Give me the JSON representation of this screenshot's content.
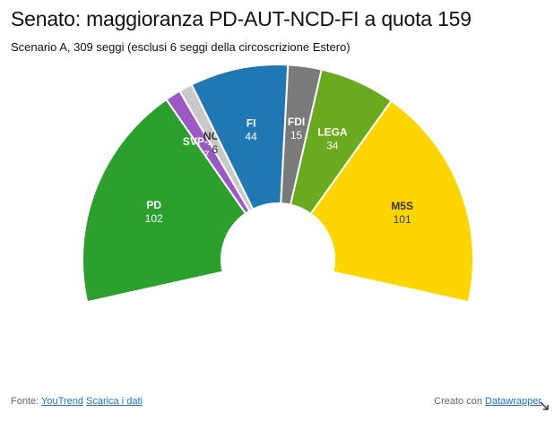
{
  "title": "Senato: maggioranza PD-AUT-NCD-FI a quota 159",
  "subtitle": "Scenario A, 309 seggi (esclusi 6 seggi della circoscrizione Estero)",
  "footer": {
    "source_prefix": "Fonte:",
    "source_link": "YouTrend",
    "download_link": "Scarica i dati",
    "credit_prefix": "Creato con",
    "credit_link": "Datawrapper"
  },
  "chart_data": {
    "type": "pie",
    "variant": "semicircle-parliament",
    "total": 309,
    "slices": [
      {
        "name": "PD",
        "value": 102,
        "color": "#2ca02c",
        "label_color": "light"
      },
      {
        "name": "SVP-AUT",
        "value": 7,
        "color": "#9b59c6",
        "label_color": "light"
      },
      {
        "name": "NCD",
        "value": 6,
        "color": "#c8c8c8",
        "label_color": "dark"
      },
      {
        "name": "FI",
        "value": 44,
        "color": "#1f77b4",
        "label_color": "light"
      },
      {
        "name": "FDI",
        "value": 15,
        "color": "#7a7a7a",
        "label_color": "light"
      },
      {
        "name": "LEGA",
        "value": 34,
        "color": "#6aaa1e",
        "label_color": "light"
      },
      {
        "name": "M5S",
        "value": 101,
        "color": "#ffd500",
        "label_color": "dark"
      }
    ]
  }
}
